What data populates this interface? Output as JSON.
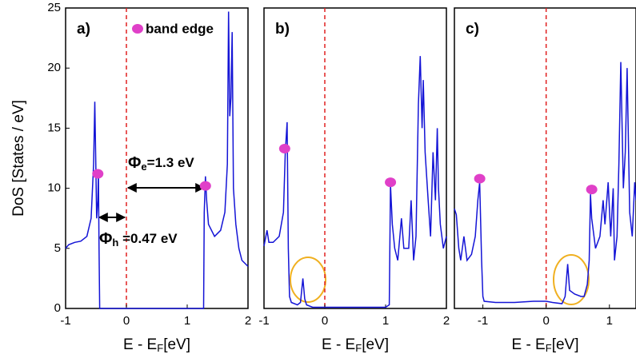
{
  "chart_data": [
    {
      "type": "line",
      "panel_label": "a)",
      "xlim": [
        -1,
        2
      ],
      "ylim": [
        0,
        25
      ],
      "xticks": [
        -1,
        0,
        1,
        2
      ],
      "yticks": [
        0,
        5,
        10,
        15,
        20,
        25
      ],
      "ylabel": "DoS [States / eV]",
      "xlabel": {
        "main": "E - E",
        "sub": "F",
        "unit": "[eV]"
      },
      "x": [
        -1,
        -0.95,
        -0.85,
        -0.75,
        -0.65,
        -0.58,
        -0.54,
        -0.52,
        -0.5,
        -0.49,
        -0.47,
        -0.46,
        -0.45,
        -0.44,
        1.27,
        1.28,
        1.3,
        1.32,
        1.35,
        1.45,
        1.55,
        1.62,
        1.66,
        1.68,
        1.7,
        1.72,
        1.74,
        1.76,
        1.8,
        1.85,
        1.9,
        2
      ],
      "series": [
        {
          "color": "#1414d6",
          "values": [
            5,
            5.3,
            5.5,
            5.6,
            6,
            7.5,
            12,
            17.2,
            11,
            7.5,
            9,
            11.5,
            5,
            0,
            0,
            8,
            11,
            9,
            7,
            6,
            6.5,
            8,
            12,
            24.7,
            16,
            17.5,
            23,
            10,
            7,
            5,
            4,
            3.5
          ]
        }
      ],
      "markers": {
        "name": "band edge",
        "color": "#e040c8",
        "x": [
          -0.47,
          1.3
        ],
        "values": [
          11.2,
          10.2
        ]
      },
      "annotations": [
        {
          "symbol": "Φ",
          "sub": "e",
          "text": "=1.3 eV"
        },
        {
          "symbol": "Φ",
          "sub": "h",
          "text": " =0.47 eV"
        }
      ]
    },
    {
      "type": "line",
      "panel_label": "b)",
      "xlim": [
        -1,
        2
      ],
      "ylim": [
        0,
        25
      ],
      "xticks": [
        -1,
        0,
        1,
        2
      ],
      "xlabel": {
        "main": "E - E",
        "sub": "F",
        "unit": "[eV]"
      },
      "x": [
        -1,
        -0.95,
        -0.92,
        -0.85,
        -0.75,
        -0.68,
        -0.65,
        -0.62,
        -0.6,
        -0.58,
        -0.55,
        -0.45,
        -0.4,
        -0.36,
        -0.33,
        -0.3,
        -0.2,
        0,
        0.5,
        1,
        1.06,
        1.08,
        1.11,
        1.15,
        1.2,
        1.26,
        1.3,
        1.38,
        1.42,
        1.46,
        1.5,
        1.54,
        1.57,
        1.6,
        1.62,
        1.65,
        1.7,
        1.74,
        1.78,
        1.82,
        1.85,
        1.87,
        1.9,
        1.95,
        2
      ],
      "series": [
        {
          "color": "#1414d6",
          "values": [
            5.2,
            6.5,
            5.5,
            5.5,
            6,
            8,
            13,
            15.5,
            5,
            1,
            0.5,
            0.3,
            0.5,
            2.5,
            0.8,
            0.3,
            0.1,
            0.1,
            0.1,
            0.1,
            0.3,
            10.3,
            7,
            5,
            4,
            7.5,
            5,
            5,
            9,
            4,
            6,
            17,
            21,
            15,
            19,
            13,
            9,
            6,
            13,
            9,
            15,
            10,
            7,
            5,
            6
          ]
        }
      ],
      "markers": {
        "color": "#e040c8",
        "x": [
          -0.66,
          1.08
        ],
        "values": [
          13.3,
          10.5
        ]
      }
    },
    {
      "type": "line",
      "panel_label": "c)",
      "xlim": [
        -1.45,
        1.42
      ],
      "ylim": [
        0,
        25
      ],
      "xticks": [
        -1,
        0,
        1
      ],
      "xlabel": {
        "main": "E - E",
        "sub": "F",
        "unit": "[eV]"
      },
      "x": [
        -1.45,
        -1.42,
        -1.38,
        -1.35,
        -1.3,
        -1.25,
        -1.18,
        -1.12,
        -1.08,
        -1.05,
        -1.02,
        -1,
        -0.98,
        -0.8,
        -0.5,
        -0.2,
        0,
        0.1,
        0.25,
        0.3,
        0.34,
        0.37,
        0.45,
        0.55,
        0.6,
        0.65,
        0.68,
        0.7,
        0.72,
        0.78,
        0.85,
        0.9,
        0.93,
        0.98,
        1.02,
        1.06,
        1.08,
        1.12,
        1.15,
        1.18,
        1.22,
        1.25,
        1.28,
        1.32,
        1.36,
        1.4,
        1.42
      ],
      "series": [
        {
          "color": "#1414d6",
          "values": [
            8.3,
            7.8,
            5,
            4,
            6,
            4,
            4.5,
            6,
            9,
            10.5,
            4,
            1,
            0.6,
            0.5,
            0.5,
            0.6,
            0.6,
            0.5,
            0.4,
            1,
            3.7,
            1.5,
            1.2,
            1,
            1,
            2,
            4,
            9.5,
            7.5,
            5,
            6,
            9,
            7,
            10.5,
            6,
            10,
            4,
            6,
            12,
            20.5,
            10,
            13,
            20,
            8,
            6,
            10.5,
            9
          ]
        }
      ],
      "markers": {
        "color": "#e040c8",
        "x": [
          -1.05,
          0.72
        ],
        "values": [
          10.8,
          9.9
        ]
      }
    }
  ]
}
